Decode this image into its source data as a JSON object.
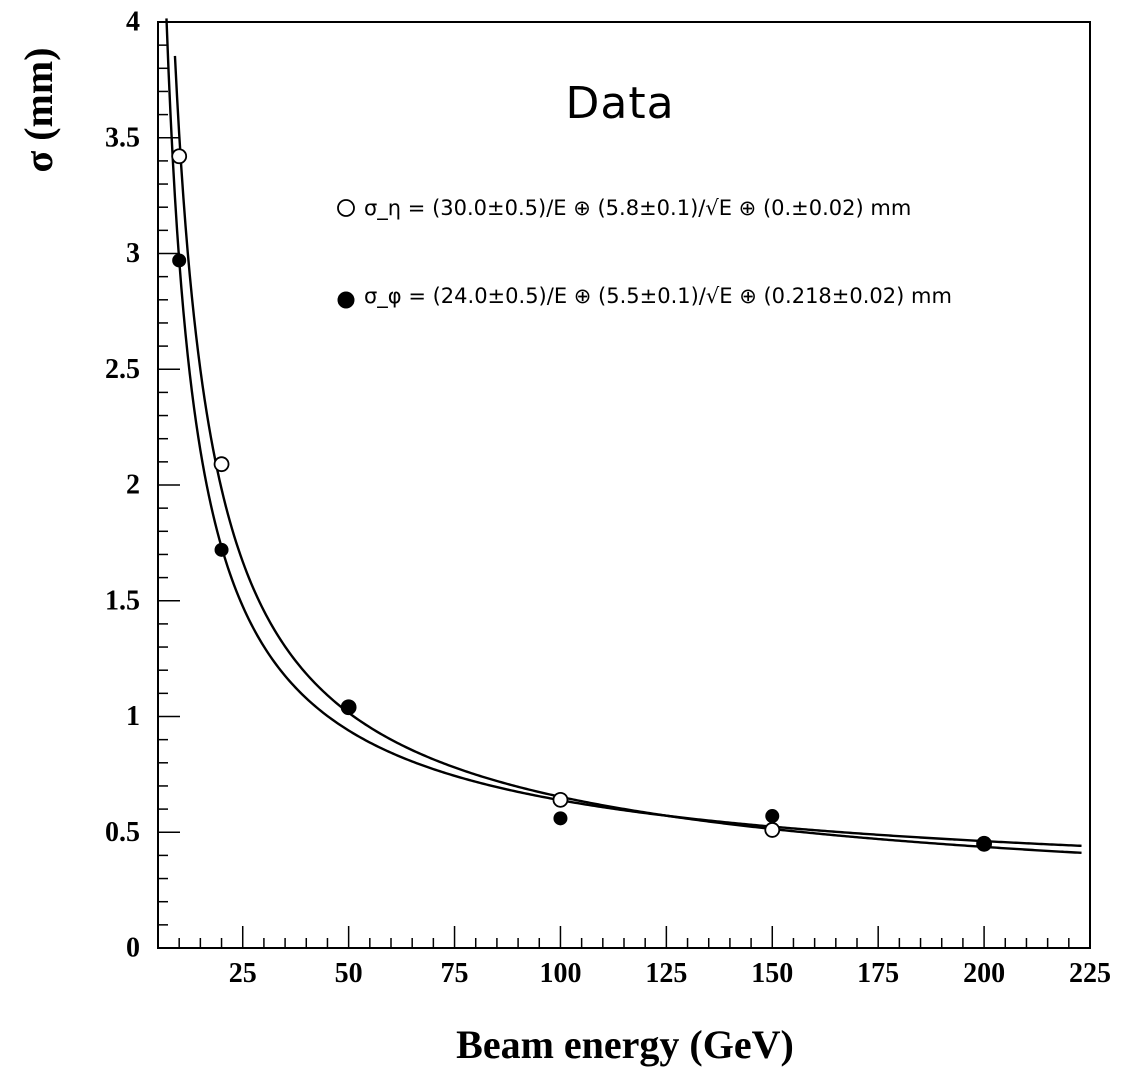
{
  "chart_data": {
    "type": "scatter",
    "title": "Data",
    "xlabel": "Beam energy (GeV)",
    "ylabel": "σ (mm)",
    "xlim": [
      5,
      225
    ],
    "ylim": [
      0,
      4
    ],
    "x_ticks": [
      25,
      50,
      75,
      100,
      125,
      150,
      175,
      200,
      225
    ],
    "x_tick_labels": [
      "25",
      "50",
      "75",
      "100",
      "125",
      "150",
      "175",
      "200",
      "225"
    ],
    "y_ticks": [
      0,
      0.5,
      1,
      1.5,
      2,
      2.5,
      3,
      3.5,
      4
    ],
    "y_tick_labels": [
      "0",
      "0.5",
      "1",
      "1.5",
      "2",
      "2.5",
      "3",
      "3.5",
      "4"
    ],
    "grid": false,
    "legend_position": "top-right",
    "series": [
      {
        "name": "σ_η = (30.0±0.5)/E ⊕ (5.8±0.1)/√E ⊕ (0.±0.02) mm",
        "marker": "open-circle",
        "fit": {
          "a": 30.0,
          "b": 5.8,
          "c": 0.0
        },
        "points": [
          {
            "x": 10,
            "y": 3.42
          },
          {
            "x": 20,
            "y": 2.09
          },
          {
            "x": 50,
            "y": 1.04
          },
          {
            "x": 100,
            "y": 0.64
          },
          {
            "x": 150,
            "y": 0.51
          },
          {
            "x": 200,
            "y": 0.45
          }
        ]
      },
      {
        "name": "σ_φ = (24.0±0.5)/E ⊕ (5.5±0.1)/√E ⊕ (0.218±0.02) mm",
        "marker": "filled-circle",
        "fit": {
          "a": 24.0,
          "b": 5.5,
          "c": 0.218
        },
        "points": [
          {
            "x": 10,
            "y": 2.97
          },
          {
            "x": 20,
            "y": 1.72
          },
          {
            "x": 50,
            "y": 1.04
          },
          {
            "x": 100,
            "y": 0.56
          },
          {
            "x": 150,
            "y": 0.57
          },
          {
            "x": 200,
            "y": 0.45
          }
        ]
      }
    ]
  }
}
